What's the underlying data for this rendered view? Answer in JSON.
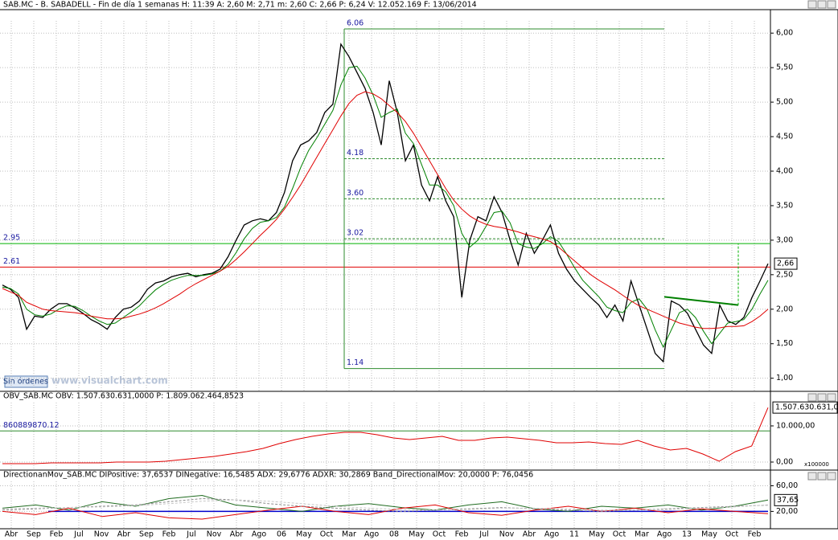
{
  "chart_data": [
    {
      "type": "line",
      "title": "SAB.MC - B. SABADELL - Fin de día 1 semanas H: 11:39 A: 2,60 M: 2,71 m: 2,60 C: 2,66 P: 6,24 V: 12.052.169 F: 13/06/2014",
      "ylim": [
        0.81,
        6.34
      ],
      "yticks": [
        {
          "value": 1,
          "label": "1,00"
        },
        {
          "value": 1.5,
          "label": "1,50"
        },
        {
          "value": 2,
          "label": "2,00"
        },
        {
          "value": 2.5,
          "label": "2,50"
        },
        {
          "value": 3,
          "label": "3,00"
        },
        {
          "value": 3.5,
          "label": "3,50"
        },
        {
          "value": 4,
          "label": "4,00"
        },
        {
          "value": 4.5,
          "label": "4,50"
        },
        {
          "value": 5,
          "label": "5,00"
        },
        {
          "value": 5.5,
          "label": "5,50"
        },
        {
          "value": 6,
          "label": "6,00"
        }
      ],
      "grid": true,
      "last": {
        "value": 2.66,
        "label": "2,66"
      },
      "horizontal_lines": [
        {
          "value": 2.95,
          "color": "#00b000"
        },
        {
          "value": 2.61,
          "color": "#e00000"
        }
      ],
      "fib_levels": [
        6.06,
        4.18,
        {
          "value": 3.6,
          "label": "3.60"
        },
        3.02,
        1.14
      ],
      "series": [
        {
          "color": "#000000",
          "values": [
            2.35,
            2.29,
            2.17,
            1.71,
            1.9,
            1.88,
            2.0,
            2.08,
            2.08,
            2.02,
            1.94,
            1.85,
            1.79,
            1.71,
            1.88,
            2.0,
            2.03,
            2.12,
            2.29,
            2.38,
            2.41,
            2.47,
            2.5,
            2.52,
            2.47,
            2.5,
            2.52,
            2.58,
            2.76,
            3.0,
            3.22,
            3.28,
            3.31,
            3.28,
            3.4,
            3.69,
            4.15,
            4.38,
            4.44,
            4.56,
            4.85,
            4.97,
            5.84,
            5.66,
            5.43,
            5.2,
            4.85,
            4.38,
            5.31,
            4.85,
            4.15,
            4.38,
            3.8,
            3.57,
            3.92,
            3.57,
            3.34,
            2.17,
            3.0,
            3.34,
            3.28,
            3.63,
            3.4,
            3.0,
            2.64,
            3.1,
            2.81,
            3.0,
            3.22,
            2.81,
            2.58,
            2.41,
            2.29,
            2.17,
            2.06,
            1.88,
            2.06,
            1.83,
            2.41,
            2.06,
            1.71,
            1.36,
            1.24,
            2.12,
            2.06,
            1.94,
            1.71,
            1.48,
            1.36,
            2.06,
            1.83,
            1.78,
            1.88,
            2.17,
            2.41,
            2.66
          ]
        },
        {
          "color": "#008000",
          "values": [
            2.32,
            2.3,
            2.22,
            2.0,
            1.92,
            1.9,
            1.93,
            2.0,
            2.05,
            2.04,
            1.98,
            1.9,
            1.83,
            1.78,
            1.8,
            1.88,
            1.96,
            2.05,
            2.17,
            2.28,
            2.36,
            2.42,
            2.46,
            2.49,
            2.49,
            2.49,
            2.51,
            2.55,
            2.65,
            2.82,
            3.02,
            3.17,
            3.26,
            3.28,
            3.33,
            3.48,
            3.75,
            4.05,
            4.3,
            4.48,
            4.68,
            4.88,
            5.25,
            5.5,
            5.52,
            5.35,
            5.1,
            4.78,
            4.85,
            4.9,
            4.55,
            4.4,
            4.1,
            3.8,
            3.8,
            3.7,
            3.5,
            3.1,
            2.9,
            3.0,
            3.2,
            3.4,
            3.42,
            3.25,
            2.95,
            2.9,
            2.88,
            2.95,
            3.05,
            2.98,
            2.8,
            2.6,
            2.42,
            2.3,
            2.18,
            2.03,
            1.98,
            1.95,
            2.1,
            2.15,
            2.0,
            1.7,
            1.45,
            1.7,
            1.95,
            2.0,
            1.88,
            1.68,
            1.5,
            1.65,
            1.8,
            1.82,
            1.85,
            2.0,
            2.22,
            2.42
          ]
        },
        {
          "color": "#e00000",
          "values": [
            2.3,
            2.25,
            2.2,
            2.1,
            2.05,
            2.0,
            1.98,
            1.97,
            1.96,
            1.95,
            1.93,
            1.9,
            1.88,
            1.86,
            1.86,
            1.87,
            1.9,
            1.93,
            1.97,
            2.02,
            2.08,
            2.15,
            2.22,
            2.3,
            2.37,
            2.43,
            2.49,
            2.55,
            2.62,
            2.72,
            2.83,
            2.95,
            3.07,
            3.18,
            3.3,
            3.45,
            3.62,
            3.8,
            4.0,
            4.2,
            4.4,
            4.6,
            4.8,
            4.98,
            5.1,
            5.15,
            5.12,
            5.05,
            4.95,
            4.85,
            4.72,
            4.55,
            4.35,
            4.15,
            3.95,
            3.75,
            3.58,
            3.45,
            3.35,
            3.28,
            3.23,
            3.2,
            3.18,
            3.15,
            3.12,
            3.08,
            3.05,
            3.02,
            2.98,
            2.9,
            2.8,
            2.7,
            2.6,
            2.5,
            2.42,
            2.35,
            2.28,
            2.2,
            2.12,
            2.05,
            2.0,
            1.95,
            1.9,
            1.85,
            1.8,
            1.77,
            1.74,
            1.72,
            1.72,
            1.73,
            1.75,
            1.75,
            1.76,
            1.82,
            1.9,
            2.0
          ]
        }
      ]
    },
    {
      "type": "line",
      "title": "OBV_SAB.MC OBV: 1.507.630.631,0000 P: 1.809.062.464,8523",
      "ylim": [
        -2222,
        19556
      ],
      "yticks": [
        {
          "value": 0,
          "label": "0,00"
        },
        {
          "value": 10000,
          "label": "10.000,00"
        }
      ],
      "unit_label": "x100000",
      "last_label": "1.507.630.631,0",
      "reference_line": {
        "value": 8609,
        "label": "860889870.12"
      },
      "series": [
        {
          "color": "#e00000",
          "values": [
            -444,
            -444,
            -444,
            -222,
            -222,
            -222,
            -222,
            0,
            0,
            0,
            222,
            667,
            1111,
            1556,
            2222,
            2889,
            3778,
            5111,
            6222,
            7111,
            7778,
            8222,
            8222,
            7556,
            6667,
            6222,
            6667,
            7111,
            6000,
            6000,
            6667,
            6889,
            6444,
            6000,
            5333,
            5333,
            5556,
            5111,
            4889,
            6000,
            4444,
            3333,
            3778,
            2222,
            222,
            2889,
            4444,
            15076
          ]
        }
      ]
    },
    {
      "type": "line",
      "title": "DirectionanMov_SAB.MC DIPositive: 37,6537 DINegative: 16,5485 ADX: 29,6776 ADXR: 30,2869 Band_DirectionalMov: 20,0000 P: 76,0456",
      "ylim": [
        -7.1,
        84.5
      ],
      "yticks": [
        {
          "value": 20,
          "label": "20,00"
        },
        {
          "value": 60,
          "label": "60,00"
        }
      ],
      "last": {
        "value": 37.65,
        "label": "37,65"
      },
      "band": 20,
      "xtick_labels": [
        "Abr",
        "Sep",
        "Feb",
        "Jul",
        "Nov",
        "Abr",
        "Sep",
        "Feb",
        "Jul",
        "Nov",
        "Abr",
        "Ago",
        "06",
        "May",
        "Oct",
        "Mar",
        "Ago",
        "08",
        "May",
        "Oct",
        "Feb",
        "Jul",
        "Nov",
        "Abr",
        "Ago",
        "11",
        "May",
        "Oct",
        "Mar",
        "Ago",
        "13",
        "May",
        "Oct",
        "Feb"
      ],
      "series": [
        {
          "color": "#1f6b1f",
          "values": [
            25,
            30,
            22,
            35,
            28,
            40,
            45,
            30,
            25,
            20,
            28,
            32,
            26,
            22,
            30,
            35,
            24,
            20,
            28,
            25,
            30,
            22,
            28,
            37.65
          ]
        },
        {
          "color": "#e00000",
          "values": [
            20,
            15,
            25,
            12,
            18,
            10,
            8,
            15,
            22,
            28,
            20,
            15,
            25,
            30,
            18,
            14,
            22,
            28,
            20,
            25,
            18,
            24,
            20,
            16.55
          ]
        },
        {
          "color": "#8c8c8c",
          "dashed": true,
          "values": [
            22,
            24,
            26,
            28,
            30,
            35,
            40,
            38,
            32,
            28,
            25,
            22,
            20,
            22,
            24,
            26,
            24,
            22,
            20,
            22,
            24,
            26,
            28,
            29.68
          ]
        },
        {
          "color": "#c8c8c8",
          "dashed": true,
          "values": [
            24,
            25,
            26,
            27,
            29,
            32,
            36,
            38,
            36,
            32,
            28,
            25,
            23,
            22,
            23,
            25,
            25,
            24,
            22,
            22,
            23,
            25,
            27,
            30.29
          ]
        }
      ]
    }
  ],
  "ui": {
    "orders_button": "Sin órdenes",
    "watermark": "www.visualchart.com"
  }
}
